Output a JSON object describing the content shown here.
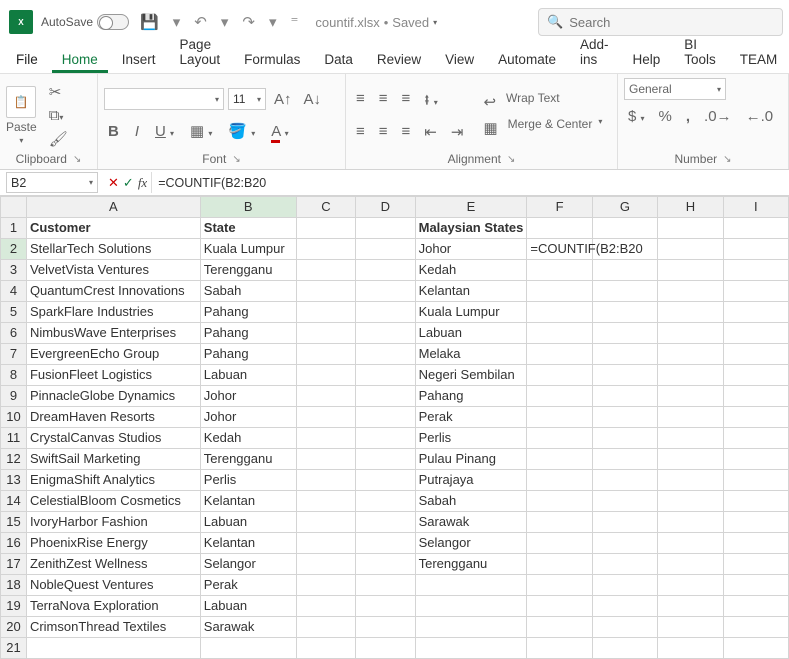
{
  "titlebar": {
    "autosave_label": "AutoSave",
    "autosave_state": "Off",
    "filename": "countif.xlsx",
    "save_status": "Saved",
    "search_placeholder": "Search"
  },
  "tabs": {
    "file": "File",
    "home": "Home",
    "insert": "Insert",
    "page_layout": "Page Layout",
    "formulas": "Formulas",
    "data": "Data",
    "review": "Review",
    "view": "View",
    "automate": "Automate",
    "addins": "Add-ins",
    "help": "Help",
    "bitools": "BI Tools",
    "team": "TEAM"
  },
  "ribbon": {
    "clipboard": {
      "label": "Clipboard",
      "paste": "Paste"
    },
    "font": {
      "label": "Font",
      "font_name": "",
      "font_size": "11"
    },
    "alignment": {
      "label": "Alignment",
      "wrap": "Wrap Text",
      "merge": "Merge & Center"
    },
    "number": {
      "label": "Number",
      "format": "General"
    }
  },
  "formula_bar": {
    "namebox": "B2",
    "formula": "=COUNTIF(B2:B20"
  },
  "columns": [
    "A",
    "B",
    "C",
    "D",
    "E",
    "F",
    "G",
    "H",
    "I"
  ],
  "active_col_index": 1,
  "row_count": 21,
  "active_row": 2,
  "selection_range": {
    "col": "B",
    "row_start": 2,
    "row_end": 20
  },
  "headers": {
    "A1": "Customer",
    "B1": "State",
    "E1": "Malaysian States"
  },
  "customers": [
    "StellarTech Solutions",
    "VelvetVista Ventures",
    "QuantumCrest Innovations",
    "SparkFlare Industries",
    "NimbusWave Enterprises",
    "EvergreenEcho Group",
    "FusionFleet Logistics",
    "PinnacleGlobe Dynamics",
    "DreamHaven Resorts",
    "CrystalCanvas Studios",
    "SwiftSail Marketing",
    "EnigmaShift Analytics",
    "CelestialBloom Cosmetics",
    "IvoryHarbor Fashion",
    "PhoenixRise Energy",
    "ZenithZest Wellness",
    "NobleQuest Ventures",
    "TerraNova Exploration",
    "CrimsonThread Textiles"
  ],
  "states": [
    "Kuala Lumpur",
    "Terengganu",
    "Sabah",
    "Pahang",
    "Pahang",
    "Pahang",
    "Labuan",
    "Johor",
    "Johor",
    "Kedah",
    "Terengganu",
    "Perlis",
    "Kelantan",
    "Labuan",
    "Kelantan",
    "Selangor",
    "Perak",
    "Labuan",
    "Sarawak"
  ],
  "malaysian_states": [
    "Johor",
    "Kedah",
    "Kelantan",
    "Kuala Lumpur",
    "Labuan",
    "Melaka",
    "Negeri Sembilan",
    "Pahang",
    "Perak",
    "Perlis",
    "Pulau Pinang",
    "Putrajaya",
    "Sabah",
    "Sarawak",
    "Selangor",
    "Terengganu"
  ],
  "f2_formula_text": "=COUNTIF(B2:B20",
  "colors": {
    "accent": "#107c41",
    "grid_border": "#d4d4d4",
    "header_bg": "#f0f0f0",
    "active_header_bg": "#d8eada"
  }
}
